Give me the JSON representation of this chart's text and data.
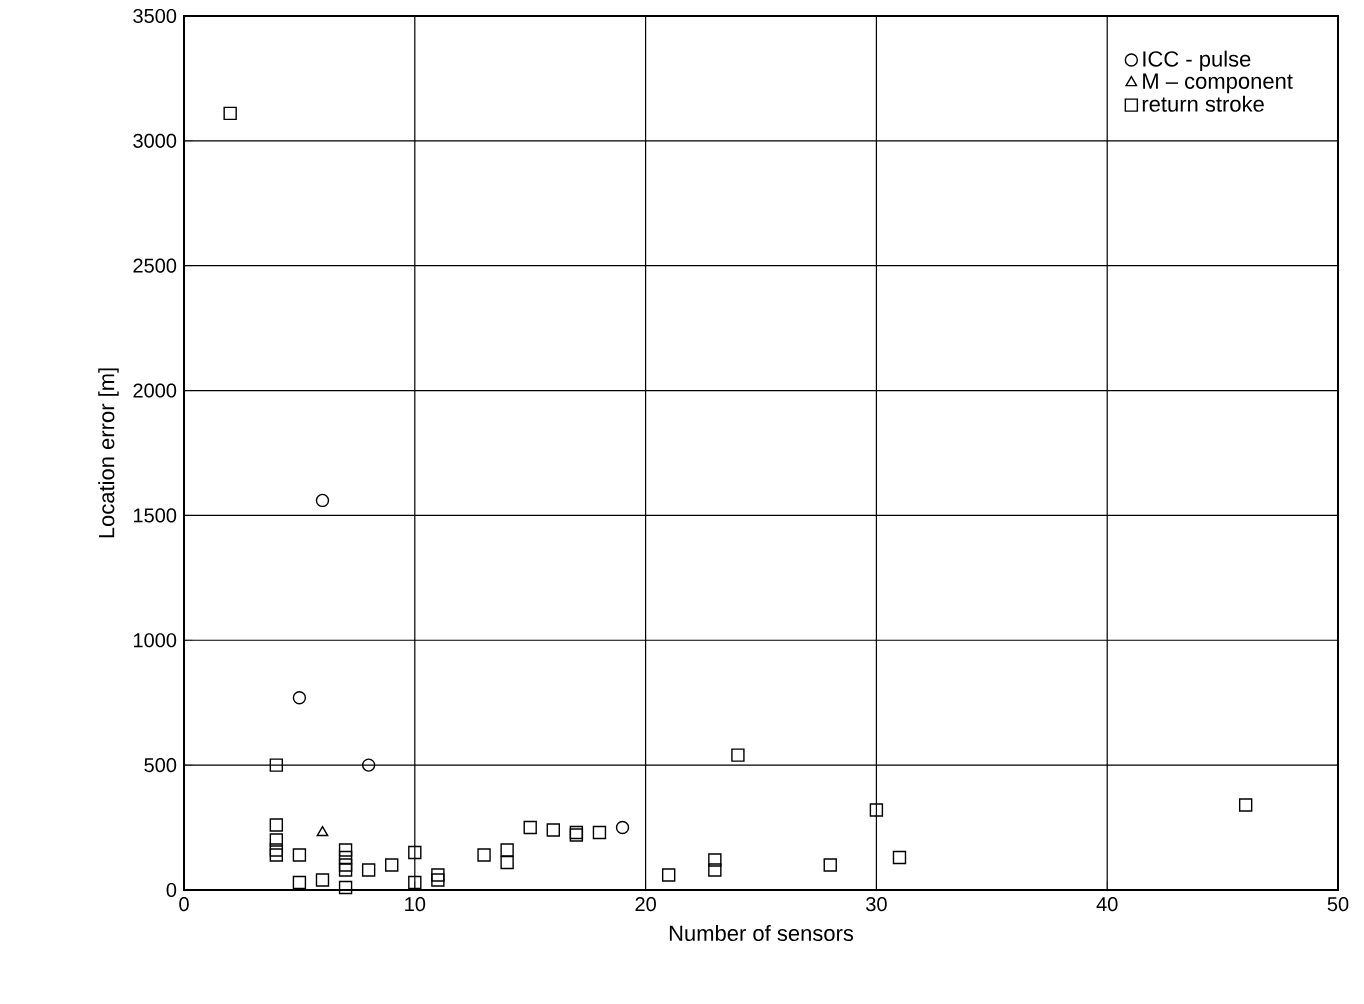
{
  "chart_data": {
    "type": "scatter",
    "xlabel": "Number of sensors",
    "ylabel": "Location error [m]",
    "xlim": [
      0,
      50
    ],
    "xticks": [
      0,
      10,
      20,
      30,
      40,
      50
    ],
    "ylim": [
      0,
      3500
    ],
    "yticks": [
      0,
      500,
      1000,
      1500,
      2000,
      2500,
      3000,
      3500
    ],
    "grid": true,
    "legend": "top right",
    "series": [
      {
        "name": "ICC - pulse",
        "color": "#000000",
        "marker": "circle",
        "x": [
          5,
          6,
          8,
          19
        ],
        "values": [
          770,
          1560,
          500,
          250
        ]
      },
      {
        "name": "M – component",
        "color": "#000000",
        "marker": "triangle",
        "x": [
          6
        ],
        "values": [
          230
        ]
      },
      {
        "name": "return stroke",
        "color": "#000000",
        "marker": "square",
        "x": [
          2,
          4,
          4,
          4,
          4,
          4,
          5,
          5,
          6,
          7,
          7,
          7,
          7,
          7,
          8,
          9,
          10,
          10,
          11,
          11,
          13,
          14,
          14,
          15,
          16,
          17,
          17,
          18,
          21,
          23,
          23,
          24,
          28,
          30,
          31,
          46
        ],
        "values": [
          3110,
          500,
          260,
          200,
          160,
          140,
          140,
          30,
          40,
          160,
          130,
          100,
          80,
          10,
          80,
          100,
          150,
          30,
          60,
          40,
          140,
          160,
          110,
          250,
          240,
          220,
          230,
          230,
          60,
          120,
          80,
          540,
          100,
          320,
          130,
          340
        ]
      }
    ]
  }
}
